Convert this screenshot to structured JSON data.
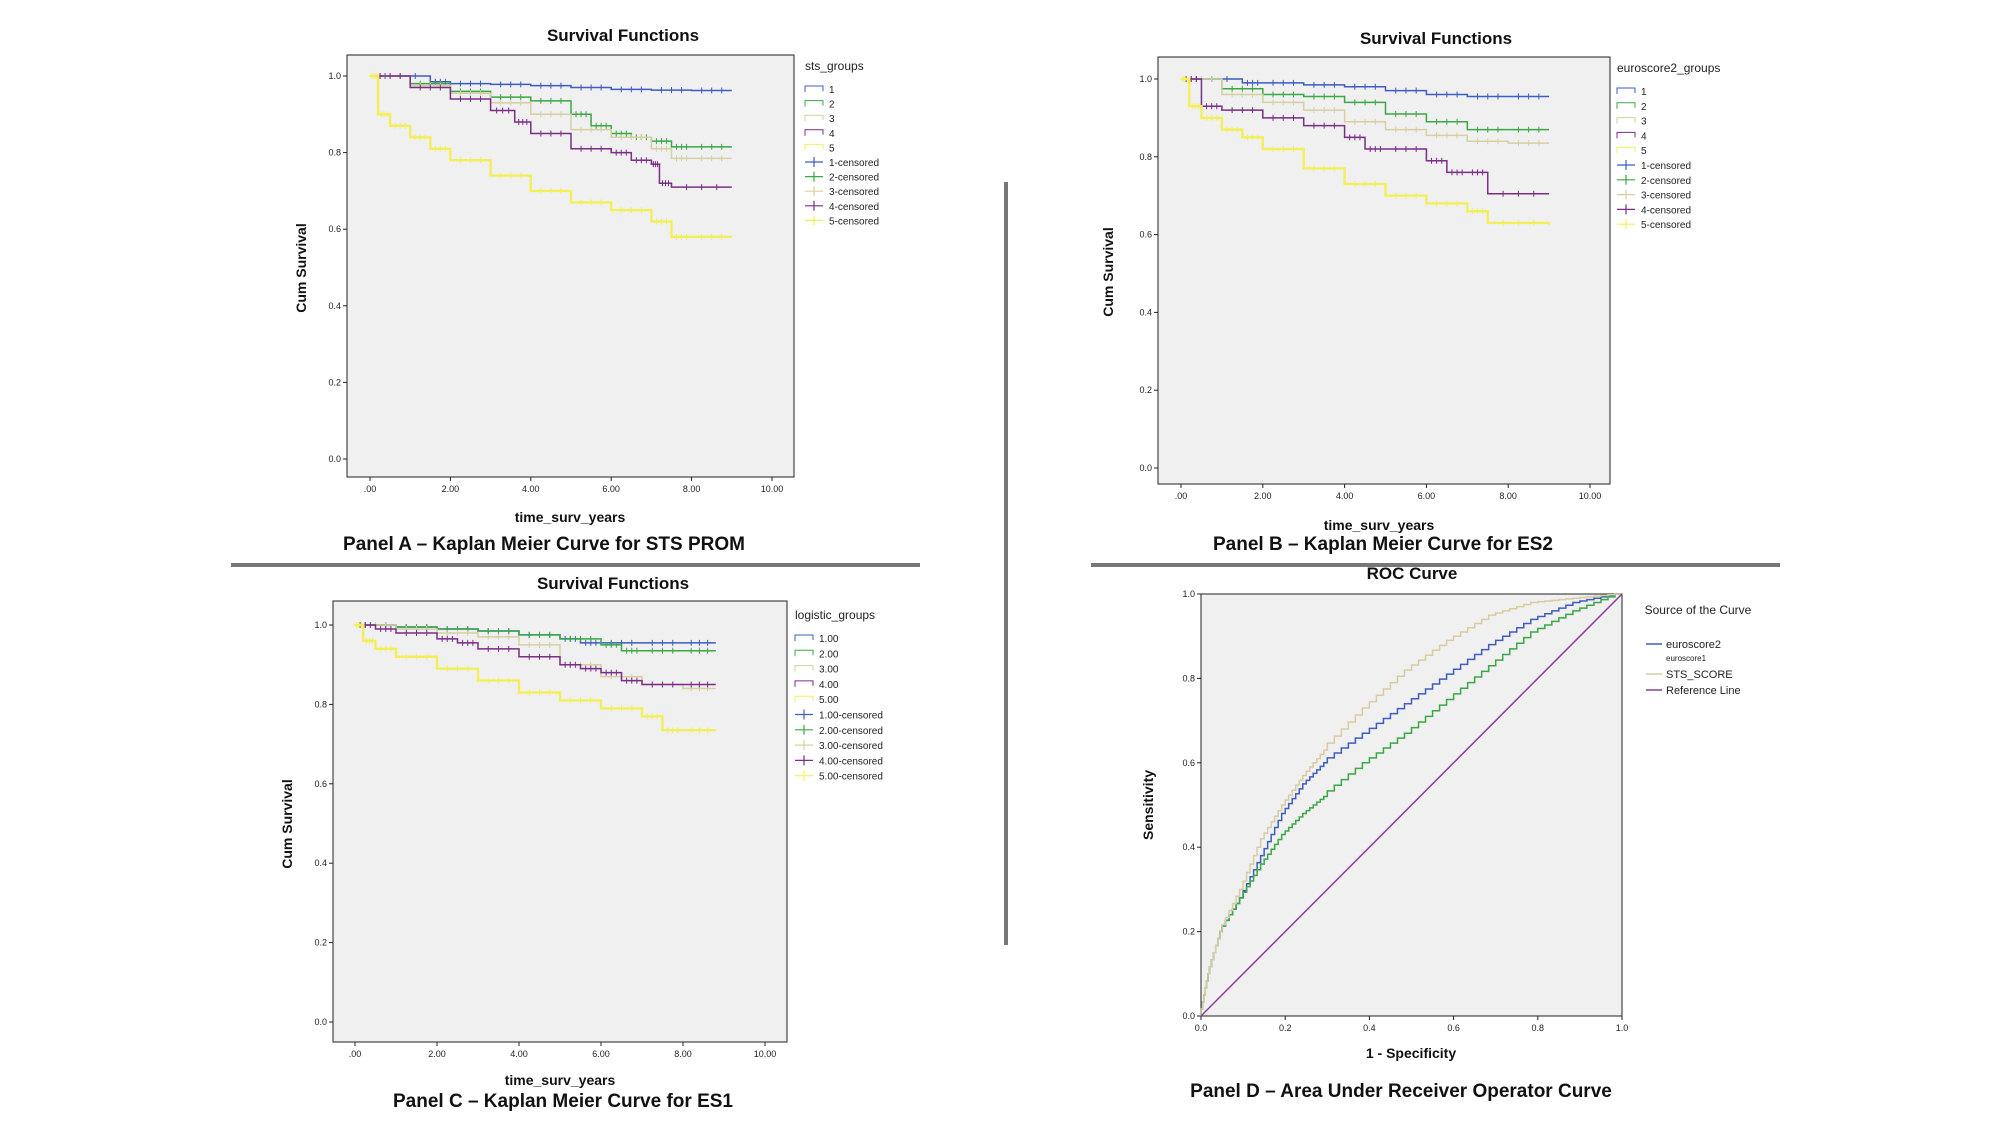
{
  "panels": [
    {
      "id": "A",
      "type": "line",
      "title": "Survival Functions",
      "xlabel": "time_surv_years",
      "ylabel": "Cum Survival",
      "xlim": [
        0,
        10
      ],
      "ylim": [
        0,
        1
      ],
      "x_ticks": [
        ".00",
        "2.00",
        "4.00",
        "6.00",
        "8.00",
        "10.00"
      ],
      "y_ticks": [
        "0.0",
        "0.2",
        "0.4",
        "0.6",
        "0.8",
        "1.0"
      ],
      "legend_title": "sts_groups",
      "legend": [
        "1",
        "2",
        "3",
        "4",
        "5",
        "1-censored",
        "2-censored",
        "3-censored",
        "4-censored",
        "5-censored"
      ],
      "caption": "Panel A – Kaplan Meier Curve for STS PROM",
      "series": [
        {
          "name": "1",
          "color": "#3f5cc0",
          "x": [
            0,
            1.5,
            2.0,
            3.0,
            4.0,
            5.0,
            6.0,
            7.0,
            8.0,
            9.0
          ],
          "y": [
            1.0,
            0.985,
            0.98,
            0.978,
            0.975,
            0.97,
            0.965,
            0.963,
            0.962,
            0.962
          ]
        },
        {
          "name": "2",
          "color": "#3aa845",
          "x": [
            0,
            1.0,
            2.0,
            3.0,
            4.0,
            5.0,
            5.5,
            6.0,
            6.5,
            7.0,
            7.5,
            8.0,
            9.0
          ],
          "y": [
            1.0,
            0.98,
            0.96,
            0.945,
            0.935,
            0.9,
            0.87,
            0.85,
            0.84,
            0.83,
            0.815,
            0.815,
            0.815
          ]
        },
        {
          "name": "3",
          "color": "#d6cfa2",
          "x": [
            0,
            1.0,
            2.0,
            3.0,
            4.0,
            5.0,
            6.0,
            7.0,
            7.5,
            8.0,
            9.0
          ],
          "y": [
            1.0,
            0.975,
            0.955,
            0.93,
            0.9,
            0.86,
            0.84,
            0.81,
            0.785,
            0.785,
            0.785
          ]
        },
        {
          "name": "4",
          "color": "#7b2d87",
          "x": [
            0,
            1.0,
            2.0,
            3.0,
            3.6,
            4.0,
            5.0,
            6.0,
            6.5,
            7.0,
            7.2,
            7.5,
            9.0
          ],
          "y": [
            1.0,
            0.97,
            0.94,
            0.91,
            0.88,
            0.85,
            0.81,
            0.8,
            0.78,
            0.77,
            0.72,
            0.71,
            0.71
          ]
        },
        {
          "name": "5",
          "color": "#f2ef5a",
          "x": [
            0,
            0.2,
            0.5,
            1.0,
            1.5,
            2.0,
            3.0,
            4.0,
            5.0,
            6.0,
            7.0,
            7.5,
            8.0,
            9.0
          ],
          "y": [
            1.0,
            0.9,
            0.87,
            0.84,
            0.81,
            0.78,
            0.74,
            0.7,
            0.67,
            0.65,
            0.62,
            0.58,
            0.58,
            0.58
          ]
        }
      ]
    },
    {
      "id": "B",
      "type": "line",
      "title": "Survival Functions",
      "xlabel": "time_surv_years",
      "ylabel": "Cum Survival",
      "xlim": [
        0,
        10
      ],
      "ylim": [
        0,
        1
      ],
      "x_ticks": [
        ".00",
        "2.00",
        "4.00",
        "6.00",
        "8.00",
        "10.00"
      ],
      "y_ticks": [
        "0.0",
        "0.2",
        "0.4",
        "0.6",
        "0.8",
        "1.0"
      ],
      "legend_title": "euroscore2_groups",
      "legend": [
        "1",
        "2",
        "3",
        "4",
        "5",
        "1-censored",
        "2-censored",
        "3-censored",
        "4-censored",
        "5-censored"
      ],
      "caption": "Panel B – Kaplan Meier Curve for ES2",
      "series": [
        {
          "name": "1",
          "color": "#3f5cc0",
          "x": [
            0,
            1.5,
            2.0,
            3.0,
            4.0,
            5.0,
            6.0,
            7.0,
            8.0,
            9.0
          ],
          "y": [
            1.0,
            0.99,
            0.99,
            0.985,
            0.98,
            0.97,
            0.96,
            0.955,
            0.955,
            0.955
          ]
        },
        {
          "name": "2",
          "color": "#3aa845",
          "x": [
            0,
            1.0,
            2.0,
            3.0,
            4.0,
            5.0,
            6.0,
            7.0,
            8.0,
            9.0
          ],
          "y": [
            1.0,
            0.975,
            0.96,
            0.955,
            0.94,
            0.91,
            0.89,
            0.87,
            0.87,
            0.87
          ]
        },
        {
          "name": "3",
          "color": "#d6cfa2",
          "x": [
            0,
            1.0,
            2.0,
            3.0,
            4.0,
            5.0,
            6.0,
            7.0,
            8.0,
            9.0
          ],
          "y": [
            1.0,
            0.96,
            0.94,
            0.92,
            0.89,
            0.87,
            0.855,
            0.84,
            0.835,
            0.835
          ]
        },
        {
          "name": "4",
          "color": "#7b2d87",
          "x": [
            0,
            0.5,
            1.0,
            2.0,
            3.0,
            4.0,
            4.5,
            5.0,
            6.0,
            6.5,
            7.0,
            7.5,
            9.0
          ],
          "y": [
            1.0,
            0.93,
            0.92,
            0.9,
            0.88,
            0.85,
            0.82,
            0.82,
            0.79,
            0.76,
            0.76,
            0.705,
            0.705
          ]
        },
        {
          "name": "5",
          "color": "#f2ef5a",
          "x": [
            0,
            0.2,
            0.5,
            1.0,
            1.5,
            2.0,
            3.0,
            4.0,
            5.0,
            6.0,
            7.0,
            7.5,
            9.0
          ],
          "y": [
            1.0,
            0.93,
            0.9,
            0.87,
            0.85,
            0.82,
            0.77,
            0.73,
            0.7,
            0.68,
            0.66,
            0.63,
            0.625
          ]
        }
      ]
    },
    {
      "id": "C",
      "type": "line",
      "title": "Survival Functions",
      "xlabel": "time_surv_years",
      "ylabel": "Cum Survival",
      "xlim": [
        0,
        10
      ],
      "ylim": [
        0,
        1
      ],
      "x_ticks": [
        ".00",
        "2.00",
        "4.00",
        "6.00",
        "8.00",
        "10.00"
      ],
      "y_ticks": [
        "0.0",
        "0.2",
        "0.4",
        "0.6",
        "0.8",
        "1.0"
      ],
      "legend_title": "logistic_groups",
      "legend": [
        "1.00",
        "2.00",
        "3.00",
        "4.00",
        "5.00",
        "1.00-censored",
        "2.00-censored",
        "3.00-censored",
        "4.00-censored",
        "5.00-censored"
      ],
      "caption": "Panel C – Kaplan Meier Curve for ES1",
      "series": [
        {
          "name": "1.00",
          "color": "#3f5cc0",
          "x": [
            0,
            1.0,
            2.0,
            3.0,
            4.0,
            5.0,
            5.5,
            6.0,
            7.0,
            8.0,
            8.8
          ],
          "y": [
            1.0,
            0.995,
            0.99,
            0.985,
            0.975,
            0.965,
            0.955,
            0.955,
            0.955,
            0.955,
            0.955
          ]
        },
        {
          "name": "2.00",
          "color": "#3aa845",
          "x": [
            0,
            1.0,
            2.0,
            3.0,
            4.0,
            5.0,
            6.0,
            6.5,
            7.0,
            8.0,
            8.8
          ],
          "y": [
            1.0,
            0.995,
            0.99,
            0.985,
            0.975,
            0.965,
            0.95,
            0.935,
            0.935,
            0.935,
            0.935
          ]
        },
        {
          "name": "3.00",
          "color": "#d6cfa2",
          "x": [
            0,
            1.0,
            2.0,
            3.0,
            4.0,
            5.0,
            6.0,
            7.0,
            8.0,
            8.8
          ],
          "y": [
            1.0,
            0.99,
            0.98,
            0.97,
            0.95,
            0.9,
            0.87,
            0.85,
            0.84,
            0.84
          ]
        },
        {
          "name": "4.00",
          "color": "#7b2d87",
          "x": [
            0,
            0.5,
            1.0,
            2.0,
            2.5,
            3.0,
            4.0,
            5.0,
            5.5,
            6.0,
            6.5,
            7.0,
            8.0,
            8.8
          ],
          "y": [
            1.0,
            0.99,
            0.98,
            0.965,
            0.955,
            0.94,
            0.92,
            0.9,
            0.89,
            0.88,
            0.86,
            0.85,
            0.85,
            0.85
          ]
        },
        {
          "name": "5.00",
          "color": "#f2ef5a",
          "x": [
            0,
            0.2,
            0.5,
            1.0,
            2.0,
            3.0,
            4.0,
            5.0,
            6.0,
            7.0,
            7.5,
            8.0,
            8.8
          ],
          "y": [
            1.0,
            0.96,
            0.94,
            0.92,
            0.89,
            0.86,
            0.83,
            0.81,
            0.79,
            0.77,
            0.735,
            0.735,
            0.735
          ]
        }
      ]
    },
    {
      "id": "D",
      "type": "line",
      "title": "ROC Curve",
      "xlabel": "1 - Specificity",
      "ylabel": "Sensitivity",
      "xlim": [
        0,
        1
      ],
      "ylim": [
        0,
        1
      ],
      "x_ticks": [
        "0.0",
        "0.2",
        "0.4",
        "0.6",
        "0.8",
        "1.0"
      ],
      "y_ticks": [
        "0.0",
        "0.2",
        "0.4",
        "0.6",
        "0.8",
        "1.0"
      ],
      "legend_title": "Source of the Curve",
      "legend": [
        "euroscore2",
        "euroscore1",
        "STS_SCORE",
        "Reference Line"
      ],
      "caption": "Panel D – Area Under Receiver Operator Curve",
      "series": [
        {
          "name": "euroscore2",
          "color": "#3f5cc0",
          "x": [
            0,
            0.02,
            0.05,
            0.1,
            0.15,
            0.2,
            0.25,
            0.3,
            0.4,
            0.5,
            0.6,
            0.7,
            0.8,
            0.9,
            1.0
          ],
          "y": [
            0,
            0.1,
            0.2,
            0.28,
            0.38,
            0.48,
            0.55,
            0.6,
            0.67,
            0.74,
            0.81,
            0.88,
            0.94,
            0.98,
            1.0
          ]
        },
        {
          "name": "euroscore1",
          "color": "#3aa845",
          "x": [
            0,
            0.02,
            0.05,
            0.1,
            0.15,
            0.2,
            0.25,
            0.3,
            0.4,
            0.5,
            0.6,
            0.7,
            0.8,
            0.9,
            1.0
          ],
          "y": [
            0,
            0.1,
            0.2,
            0.28,
            0.36,
            0.43,
            0.48,
            0.52,
            0.6,
            0.67,
            0.75,
            0.83,
            0.91,
            0.96,
            1.0
          ]
        },
        {
          "name": "STS_SCORE",
          "color": "#d8cca0",
          "x": [
            0,
            0.02,
            0.05,
            0.1,
            0.15,
            0.2,
            0.25,
            0.3,
            0.4,
            0.5,
            0.6,
            0.7,
            0.8,
            0.9,
            1.0
          ],
          "y": [
            0,
            0.1,
            0.2,
            0.3,
            0.42,
            0.5,
            0.57,
            0.63,
            0.73,
            0.82,
            0.89,
            0.95,
            0.98,
            0.99,
            1.0
          ]
        },
        {
          "name": "Reference Line",
          "color": "#8a3b9e",
          "x": [
            0,
            1
          ],
          "y": [
            0,
            1
          ]
        }
      ]
    }
  ]
}
